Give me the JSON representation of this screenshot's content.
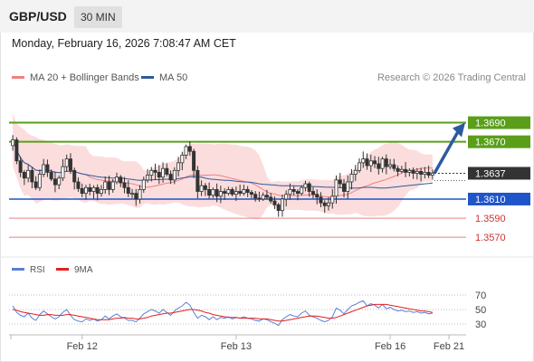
{
  "header": {
    "symbol": "GBP/USD",
    "timeframe": "30 MIN",
    "timestamp": "Monday, February 16, 2026 7:08:47 AM CET"
  },
  "legend": {
    "items": [
      {
        "label": "MA 20 + Bollinger Bands",
        "color": "#f08080"
      },
      {
        "label": "MA 50",
        "color": "#2e5a9c"
      }
    ],
    "credit": "Research © 2026 Trading Central"
  },
  "rsi_legend": {
    "items": [
      {
        "label": "RSI",
        "color": "#5b7fd6"
      },
      {
        "label": "9MA",
        "color": "#e02020"
      }
    ]
  },
  "colors": {
    "resistance": "#5a9e1a",
    "support": "#1f55c8",
    "support_secondary": "#e08585",
    "last_price_bg": "#333333",
    "arrow": "#2d5a9e",
    "candle_up": "#ffffff",
    "candle_down": "#333333",
    "bb_fill": "#fad5d5"
  },
  "chart_data": [
    {
      "type": "candlestick",
      "ylim": [
        1.3555,
        1.37
      ],
      "x_labels": [
        "Feb 12",
        "Feb 13",
        "Feb 16",
        "Feb 21"
      ],
      "last_price": "1.3637",
      "levels": [
        {
          "value": 1.369,
          "label": "1.3690",
          "kind": "resistance"
        },
        {
          "value": 1.367,
          "label": "1.3670",
          "kind": "resistance"
        },
        {
          "value": 1.361,
          "label": "1.3610",
          "kind": "pivot"
        },
        {
          "value": 1.359,
          "label": "1.3590",
          "kind": "support"
        },
        {
          "value": 1.357,
          "label": "1.3570",
          "kind": "support"
        }
      ],
      "forecast_target": 1.369,
      "close": [
        1.3672,
        1.365,
        1.3638,
        1.3632,
        1.364,
        1.3628,
        1.3622,
        1.3636,
        1.3646,
        1.3638,
        1.3631,
        1.3625,
        1.3632,
        1.3644,
        1.3652,
        1.364,
        1.3628,
        1.3621,
        1.3616,
        1.3622,
        1.3618,
        1.3622,
        1.3616,
        1.362,
        1.3628,
        1.362,
        1.3628,
        1.3633,
        1.3627,
        1.3622,
        1.3616,
        1.3616,
        1.361,
        1.362,
        1.363,
        1.3635,
        1.364,
        1.3638,
        1.3633,
        1.3642,
        1.3636,
        1.363,
        1.364,
        1.3648,
        1.3656,
        1.3665,
        1.366,
        1.364,
        1.3618,
        1.3624,
        1.362,
        1.3614,
        1.362,
        1.3613,
        1.3618,
        1.3616,
        1.362,
        1.3615,
        1.3618,
        1.3616,
        1.362,
        1.3617,
        1.3615,
        1.3611,
        1.361,
        1.3614,
        1.3612,
        1.3608,
        1.3604,
        1.3598,
        1.361,
        1.3615,
        1.362,
        1.3618,
        1.3616,
        1.3622,
        1.3626,
        1.3618,
        1.3615,
        1.3612,
        1.3606,
        1.3603,
        1.3606,
        1.3613,
        1.363,
        1.3626,
        1.3618,
        1.3628,
        1.3636,
        1.364,
        1.3648,
        1.3652,
        1.3645,
        1.365,
        1.3647,
        1.3642,
        1.3652,
        1.3644,
        1.3646,
        1.3642,
        1.3639,
        1.3641,
        1.3638,
        1.364,
        1.3637,
        1.3639,
        1.3636,
        1.3638,
        1.3635,
        1.3637
      ]
    },
    {
      "type": "line",
      "ylim": [
        25,
        80
      ],
      "y_ticks": [
        70,
        50,
        30
      ],
      "series": [
        {
          "name": "RSI",
          "values": [
            55,
            46,
            42,
            40,
            45,
            38,
            35,
            43,
            48,
            44,
            40,
            37,
            40,
            46,
            50,
            42,
            36,
            34,
            33,
            37,
            35,
            37,
            34,
            36,
            41,
            37,
            41,
            44,
            40,
            38,
            35,
            35,
            33,
            38,
            44,
            47,
            50,
            48,
            45,
            50,
            46,
            42,
            48,
            52,
            55,
            60,
            56,
            46,
            38,
            42,
            40,
            36,
            40,
            36,
            39,
            38,
            40,
            37,
            39,
            38,
            40,
            38,
            37,
            35,
            34,
            37,
            36,
            33,
            31,
            28,
            36,
            40,
            43,
            41,
            40,
            45,
            48,
            42,
            40,
            38,
            35,
            33,
            35,
            40,
            52,
            49,
            44,
            50,
            55,
            57,
            60,
            62,
            55,
            58,
            56,
            52,
            57,
            51,
            53,
            50,
            48,
            49,
            47,
            48,
            46,
            47,
            45,
            46,
            44,
            45
          ]
        },
        {
          "name": "9MA",
          "values": [
            50,
            49,
            47,
            46,
            45,
            44,
            43,
            42,
            42,
            43,
            43,
            42,
            42,
            42,
            43,
            43,
            42,
            41,
            40,
            39,
            38,
            37,
            36,
            36,
            36,
            36,
            37,
            38,
            38,
            39,
            38,
            38,
            37,
            37,
            38,
            39,
            41,
            42,
            43,
            44,
            45,
            45,
            46,
            47,
            48,
            49,
            50,
            50,
            49,
            48,
            46,
            45,
            43,
            42,
            41,
            40,
            39,
            39,
            39,
            38,
            38,
            38,
            38,
            38,
            37,
            37,
            37,
            36,
            35,
            34,
            34,
            35,
            36,
            37,
            38,
            39,
            40,
            41,
            41,
            41,
            40,
            39,
            38,
            38,
            39,
            41,
            43,
            45,
            47,
            49,
            51,
            53,
            55,
            56,
            57,
            57,
            57,
            57,
            56,
            55,
            54,
            53,
            52,
            51,
            50,
            49,
            48,
            48,
            47,
            46
          ]
        }
      ]
    }
  ]
}
